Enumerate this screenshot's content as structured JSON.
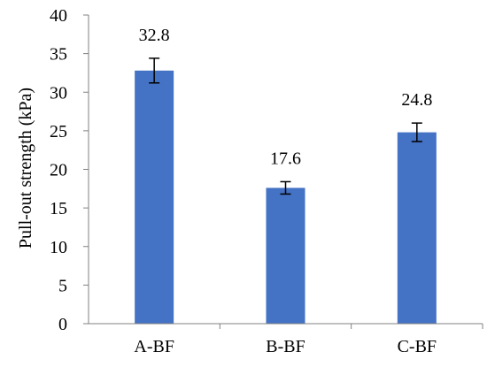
{
  "chart_data": {
    "type": "bar",
    "categories": [
      "A-BF",
      "B-BF",
      "C-BF"
    ],
    "values": [
      32.8,
      17.6,
      24.8
    ],
    "value_labels": [
      "32.8",
      "17.6",
      "24.8"
    ],
    "error": [
      1.6,
      0.8,
      1.2
    ],
    "title": "",
    "xlabel": "",
    "ylabel": "Pull-out strength (kPa)",
    "ylim": [
      0,
      40
    ],
    "yticks": [
      0,
      5,
      10,
      15,
      20,
      25,
      30,
      35,
      40
    ],
    "bar_color": "#4472C4",
    "grid": false,
    "legend": "none"
  }
}
